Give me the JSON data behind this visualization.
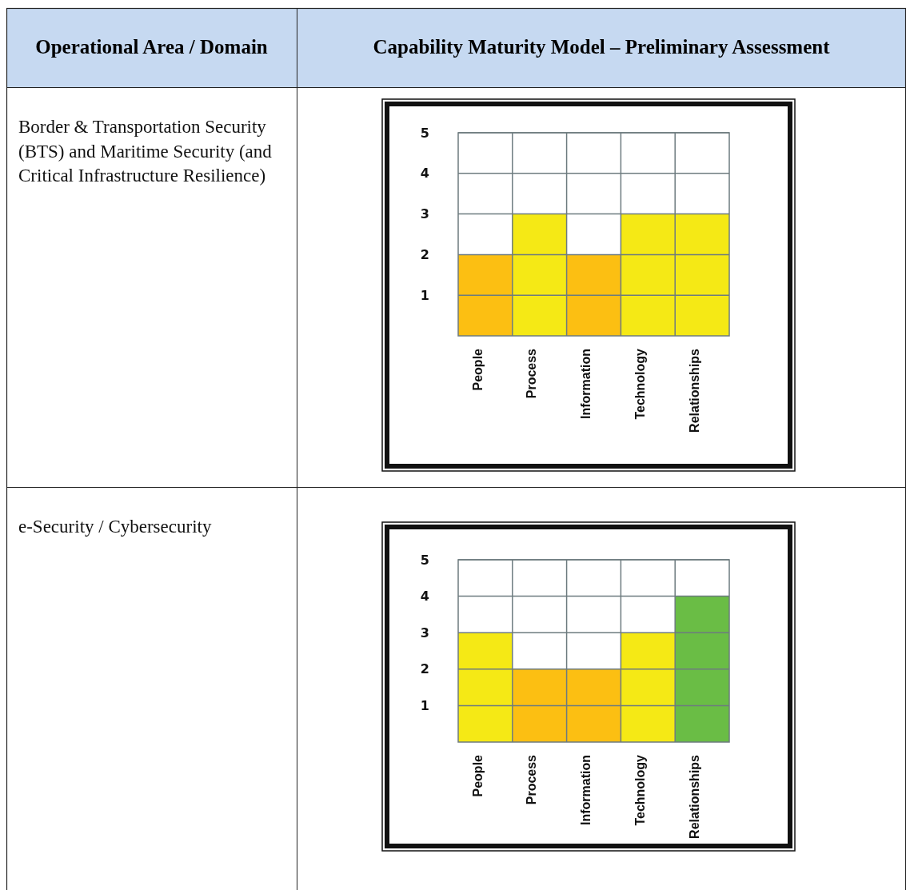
{
  "chart_data": [
    {
      "type": "other",
      "annotations": [
        "Operational Area / Domain",
        "Capability Maturity Model – Preliminary Assessment",
        "Border & Transportation Security (BTS) and Maritime Security (and Critical Infrastructure Resilience)",
        "e-Security / Cybersecurity"
      ]
    },
    {
      "type": "bar",
      "categories": [
        "People",
        "Process",
        "Information",
        "Technology",
        "Relationships"
      ],
      "values": [
        2,
        3,
        2,
        3,
        3
      ],
      "colors": [
        "#fcbf12",
        "#f5e915",
        "#fcbf12",
        "#f5e915",
        "#f5e915"
      ],
      "ylim": [
        0,
        5
      ],
      "yticks": [
        1,
        2,
        3,
        4,
        5
      ],
      "grid": true
    },
    {
      "type": "bar",
      "categories": [
        "People",
        "Process",
        "Information",
        "Technology",
        "Relationships"
      ],
      "values": [
        3,
        2,
        2,
        3,
        4
      ],
      "colors": [
        "#f5e915",
        "#fcbf12",
        "#fcbf12",
        "#f5e915",
        "#6abd45"
      ],
      "ylim": [
        0,
        5
      ],
      "yticks": [
        1,
        2,
        3,
        4,
        5
      ],
      "grid": true
    }
  ]
}
